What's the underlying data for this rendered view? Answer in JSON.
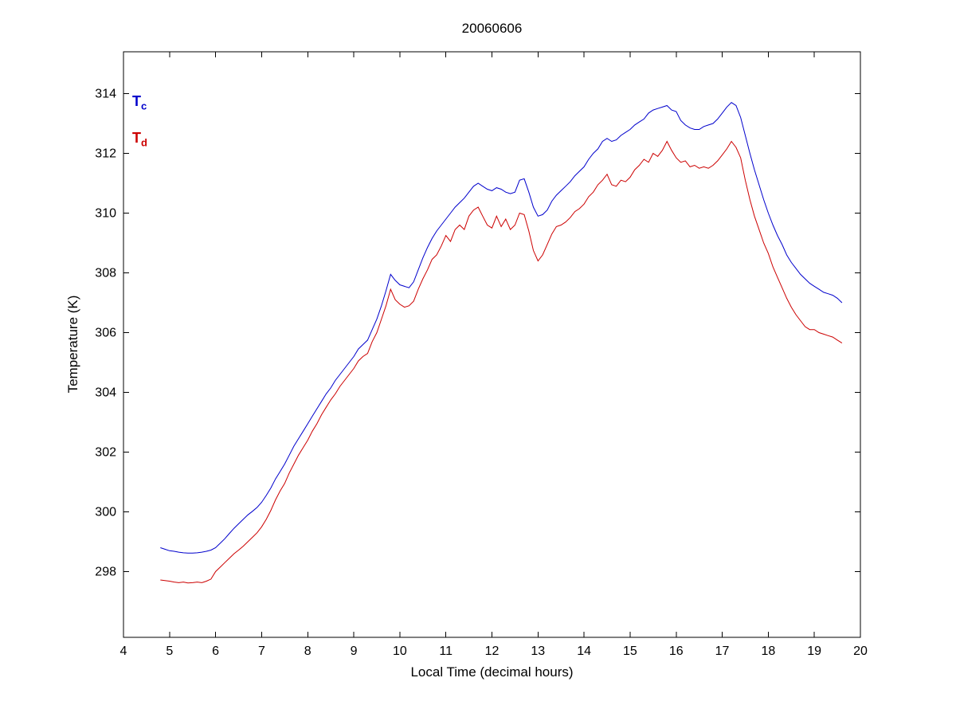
{
  "figure": {
    "background": "#ffffff",
    "axis_color": "#000000"
  },
  "chart_data": {
    "type": "line",
    "title": "20060606",
    "xlabel": "Local Time (decimal hours)",
    "ylabel": "Temperature (K)",
    "xlim": [
      4,
      20
    ],
    "ylim": [
      295.8,
      315.4
    ],
    "xticks": [
      4,
      5,
      6,
      7,
      8,
      9,
      10,
      11,
      12,
      13,
      14,
      15,
      16,
      17,
      18,
      19,
      20
    ],
    "yticks": [
      298,
      300,
      302,
      304,
      306,
      308,
      310,
      312,
      314
    ],
    "grid": "off",
    "legend_position": "top-left-inside",
    "x": [
      4.8,
      4.9,
      5.0,
      5.1,
      5.2,
      5.3,
      5.4,
      5.5,
      5.6,
      5.7,
      5.8,
      5.9,
      6.0,
      6.1,
      6.2,
      6.3,
      6.4,
      6.5,
      6.6,
      6.7,
      6.8,
      6.9,
      7.0,
      7.1,
      7.2,
      7.3,
      7.4,
      7.5,
      7.6,
      7.7,
      7.8,
      7.9,
      8.0,
      8.1,
      8.2,
      8.3,
      8.4,
      8.5,
      8.6,
      8.7,
      8.8,
      8.9,
      9.0,
      9.1,
      9.2,
      9.3,
      9.4,
      9.5,
      9.6,
      9.7,
      9.8,
      9.9,
      10.0,
      10.1,
      10.2,
      10.3,
      10.4,
      10.5,
      10.6,
      10.7,
      10.8,
      10.9,
      11.0,
      11.1,
      11.2,
      11.3,
      11.4,
      11.5,
      11.6,
      11.7,
      11.8,
      11.9,
      12.0,
      12.1,
      12.2,
      12.3,
      12.4,
      12.5,
      12.6,
      12.7,
      12.8,
      12.9,
      13.0,
      13.1,
      13.2,
      13.3,
      13.4,
      13.5,
      13.6,
      13.7,
      13.8,
      13.9,
      14.0,
      14.1,
      14.2,
      14.3,
      14.4,
      14.5,
      14.6,
      14.7,
      14.8,
      14.9,
      15.0,
      15.1,
      15.2,
      15.3,
      15.4,
      15.5,
      15.6,
      15.7,
      15.8,
      15.9,
      16.0,
      16.1,
      16.2,
      16.3,
      16.4,
      16.5,
      16.6,
      16.7,
      16.8,
      16.9,
      17.0,
      17.1,
      17.2,
      17.3,
      17.4,
      17.5,
      17.6,
      17.7,
      17.8,
      17.9,
      18.0,
      18.1,
      18.2,
      18.3,
      18.4,
      18.5,
      18.6,
      18.7,
      18.8,
      18.9,
      19.0,
      19.1,
      19.2,
      19.3,
      19.4,
      19.5,
      19.6
    ],
    "series": [
      {
        "name": "Tc",
        "label_base": "T",
        "label_sub": "c",
        "color": "#0000cc",
        "values": [
          298.8,
          298.75,
          298.7,
          298.68,
          298.65,
          298.63,
          298.62,
          298.62,
          298.63,
          298.65,
          298.68,
          298.72,
          298.8,
          298.95,
          299.1,
          299.28,
          299.45,
          299.6,
          299.75,
          299.9,
          300.02,
          300.15,
          300.32,
          300.55,
          300.8,
          301.1,
          301.35,
          301.6,
          301.9,
          302.2,
          302.45,
          302.7,
          302.95,
          303.2,
          303.45,
          303.7,
          303.95,
          304.15,
          304.4,
          304.6,
          304.8,
          305.0,
          305.2,
          305.45,
          305.6,
          305.75,
          306.1,
          306.45,
          306.9,
          307.4,
          307.95,
          307.75,
          307.6,
          307.55,
          307.5,
          307.7,
          308.1,
          308.5,
          308.85,
          309.15,
          309.4,
          309.6,
          309.8,
          310.0,
          310.2,
          310.35,
          310.5,
          310.7,
          310.9,
          311.0,
          310.9,
          310.8,
          310.75,
          310.85,
          310.8,
          310.7,
          310.65,
          310.7,
          311.1,
          311.15,
          310.7,
          310.2,
          309.9,
          309.95,
          310.1,
          310.4,
          310.6,
          310.75,
          310.9,
          311.05,
          311.25,
          311.4,
          311.55,
          311.8,
          312.0,
          312.15,
          312.4,
          312.5,
          312.4,
          312.45,
          312.6,
          312.7,
          312.8,
          312.95,
          313.05,
          313.15,
          313.35,
          313.45,
          313.5,
          313.55,
          313.6,
          313.45,
          313.4,
          313.1,
          312.95,
          312.85,
          312.8,
          312.8,
          312.9,
          312.95,
          313.0,
          313.15,
          313.35,
          313.55,
          313.7,
          313.6,
          313.2,
          312.6,
          312.0,
          311.45,
          310.95,
          310.45,
          310.0,
          309.6,
          309.25,
          308.95,
          308.6,
          308.35,
          308.15,
          307.95,
          307.8,
          307.65,
          307.55,
          307.45,
          307.35,
          307.3,
          307.25,
          307.15,
          307.0
        ]
      },
      {
        "name": "Td",
        "label_base": "T",
        "label_sub": "d",
        "color": "#cc0000",
        "values": [
          297.72,
          297.7,
          297.68,
          297.65,
          297.63,
          297.65,
          297.62,
          297.63,
          297.65,
          297.63,
          297.68,
          297.75,
          298.0,
          298.15,
          298.3,
          298.45,
          298.6,
          298.72,
          298.85,
          299.0,
          299.15,
          299.3,
          299.5,
          299.75,
          300.05,
          300.4,
          300.7,
          300.95,
          301.3,
          301.6,
          301.9,
          302.15,
          302.4,
          302.7,
          302.95,
          303.25,
          303.5,
          303.75,
          303.95,
          304.2,
          304.4,
          304.6,
          304.8,
          305.05,
          305.2,
          305.3,
          305.7,
          306.0,
          306.45,
          306.9,
          307.45,
          307.1,
          306.95,
          306.85,
          306.9,
          307.05,
          307.45,
          307.8,
          308.1,
          308.45,
          308.6,
          308.9,
          309.25,
          309.05,
          309.45,
          309.6,
          309.45,
          309.9,
          310.1,
          310.2,
          309.9,
          309.6,
          309.5,
          309.9,
          309.55,
          309.8,
          309.45,
          309.6,
          310.0,
          309.95,
          309.4,
          308.75,
          308.4,
          308.6,
          308.95,
          309.3,
          309.55,
          309.6,
          309.7,
          309.85,
          310.05,
          310.15,
          310.3,
          310.55,
          310.7,
          310.95,
          311.1,
          311.3,
          310.95,
          310.9,
          311.1,
          311.05,
          311.2,
          311.45,
          311.6,
          311.8,
          311.7,
          312.0,
          311.9,
          312.1,
          312.4,
          312.1,
          311.85,
          311.7,
          311.75,
          311.55,
          311.6,
          311.5,
          311.55,
          311.5,
          311.6,
          311.75,
          311.95,
          312.15,
          312.4,
          312.2,
          311.85,
          311.1,
          310.45,
          309.9,
          309.45,
          309.0,
          308.65,
          308.2,
          307.85,
          307.5,
          307.15,
          306.85,
          306.6,
          306.4,
          306.2,
          306.1,
          306.1,
          306.0,
          305.95,
          305.9,
          305.85,
          305.75,
          305.65
        ]
      }
    ]
  }
}
